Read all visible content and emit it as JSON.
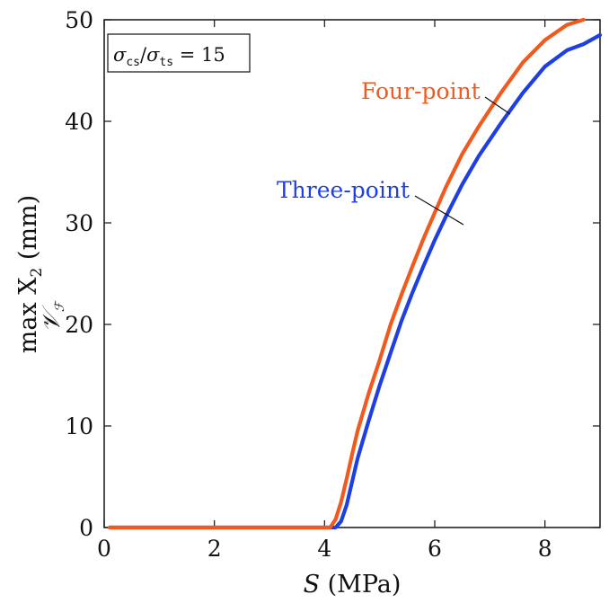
{
  "chart_data": {
    "type": "line",
    "xlabel_var": "S",
    "xlabel_unit": " (MPa)",
    "ylabel_main": "max X",
    "ylabel_sub": "2",
    "ylabel_unit": " (mm)",
    "ylabel_under": "𝒱",
    "ylabel_under_sub": "ℱ",
    "xlim": [
      0,
      9
    ],
    "ylim": [
      0,
      50
    ],
    "x_ticks": [
      0,
      2,
      4,
      6,
      8
    ],
    "y_ticks": [
      0,
      10,
      20,
      30,
      40,
      50
    ],
    "grid": false,
    "annotation": {
      "sigma": "σ",
      "sub_cs": "cs",
      "sub_ts": "ts",
      "slash": "/",
      "equals": " = 15"
    },
    "series": [
      {
        "name": "Four-point",
        "color": "#f05a1e",
        "x": [
          0.1,
          4.1,
          4.2,
          4.3,
          4.4,
          4.5,
          4.6,
          4.8,
          5.0,
          5.2,
          5.4,
          5.6,
          5.8,
          6.0,
          6.2,
          6.5,
          6.8,
          7.2,
          7.6,
          8.0,
          8.4,
          8.7
        ],
        "y": [
          0,
          0,
          0.8,
          2.5,
          4.8,
          7.2,
          9.5,
          13.2,
          16.5,
          20.0,
          23.0,
          25.8,
          28.5,
          31.0,
          33.5,
          36.8,
          39.5,
          42.8,
          45.8,
          48.0,
          49.5,
          50.0
        ]
      },
      {
        "name": "Three-point",
        "color": "#1f3fe0",
        "x": [
          0.1,
          4.2,
          4.3,
          4.4,
          4.5,
          4.6,
          4.8,
          5.0,
          5.2,
          5.4,
          5.6,
          5.8,
          6.0,
          6.2,
          6.5,
          6.8,
          7.2,
          7.6,
          8.0,
          8.4,
          8.7,
          9.0
        ],
        "y": [
          0,
          0,
          0.6,
          2.2,
          4.5,
          6.8,
          10.5,
          14.0,
          17.2,
          20.4,
          23.2,
          25.8,
          28.3,
          30.6,
          33.8,
          36.6,
          39.8,
          42.8,
          45.4,
          47.0,
          47.6,
          48.5
        ]
      }
    ]
  }
}
